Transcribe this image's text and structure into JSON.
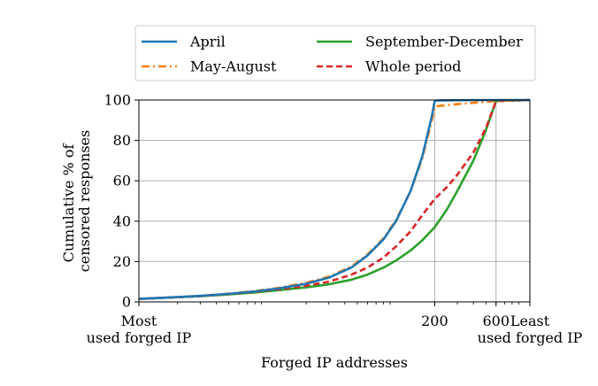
{
  "chart_data": {
    "type": "line",
    "xlabel": "Forged IP addresses",
    "ylabel_lines": [
      "Cumulative % of",
      "censored responses"
    ],
    "x_scale": "log",
    "xlim": [
      1,
      1100
    ],
    "ylim": [
      0,
      100
    ],
    "yticks": [
      0,
      20,
      40,
      60,
      80,
      100
    ],
    "xticks": [
      {
        "x": 1,
        "lines": [
          "Most",
          "used forged IP"
        ]
      },
      {
        "x": 200,
        "lines": [
          "200"
        ]
      },
      {
        "x": 600,
        "lines": [
          "600"
        ]
      },
      {
        "x": 1100,
        "lines": [
          "Least",
          "used forged IP"
        ]
      }
    ],
    "grid": "y-major, x at 200 and 600",
    "legend_position": "top-center, outside, two columns",
    "series": [
      {
        "name": "April",
        "color": "#1f77b4",
        "dash": "solid",
        "x": [
          1,
          2,
          3,
          5,
          8,
          12,
          20,
          30,
          45,
          60,
          80,
          100,
          130,
          160,
          190,
          200,
          210,
          300,
          600,
          1100
        ],
        "y": [
          1.5,
          2.4,
          3.0,
          4.0,
          5.2,
          6.6,
          9.0,
          12.0,
          17.0,
          23.0,
          31.0,
          40.0,
          55.0,
          72.0,
          92.0,
          99.5,
          99.8,
          99.9,
          100,
          100
        ]
      },
      {
        "name": "May-August",
        "color": "#ff7f0e",
        "dash": "dashdot",
        "x": [
          1,
          2,
          3,
          5,
          8,
          12,
          20,
          30,
          45,
          60,
          80,
          100,
          130,
          160,
          190,
          200,
          210,
          300,
          600,
          1100
        ],
        "y": [
          1.5,
          2.4,
          3.0,
          4.1,
          5.4,
          6.9,
          9.5,
          12.5,
          17.5,
          23.5,
          31.5,
          40.5,
          55.0,
          71.0,
          90.0,
          96.5,
          97.0,
          98.0,
          99.5,
          100
        ]
      },
      {
        "name": "September-December",
        "color": "#2ca02c",
        "dash": "solid",
        "x": [
          1,
          2,
          3,
          5,
          8,
          12,
          20,
          30,
          45,
          60,
          80,
          100,
          130,
          160,
          200,
          250,
          300,
          400,
          500,
          600,
          1100
        ],
        "y": [
          1.5,
          2.3,
          2.8,
          3.7,
          4.7,
          5.7,
          7.2,
          8.7,
          11.0,
          13.5,
          17.0,
          20.5,
          25.5,
          30.5,
          37.0,
          46.0,
          55.0,
          70.0,
          85.0,
          99.5,
          100
        ]
      },
      {
        "name": "Whole period",
        "color": "#d62728",
        "dash": "dashed",
        "x": [
          1,
          2,
          3,
          5,
          8,
          12,
          20,
          30,
          45,
          60,
          80,
          100,
          130,
          160,
          200,
          250,
          300,
          400,
          500,
          600,
          1100
        ],
        "y": [
          1.5,
          2.3,
          2.9,
          3.9,
          5.0,
          6.2,
          8.0,
          10.0,
          13.5,
          17.0,
          22.0,
          27.5,
          35.0,
          43.0,
          51.0,
          57.0,
          63.0,
          74.0,
          86.0,
          99.5,
          100
        ]
      }
    ]
  }
}
